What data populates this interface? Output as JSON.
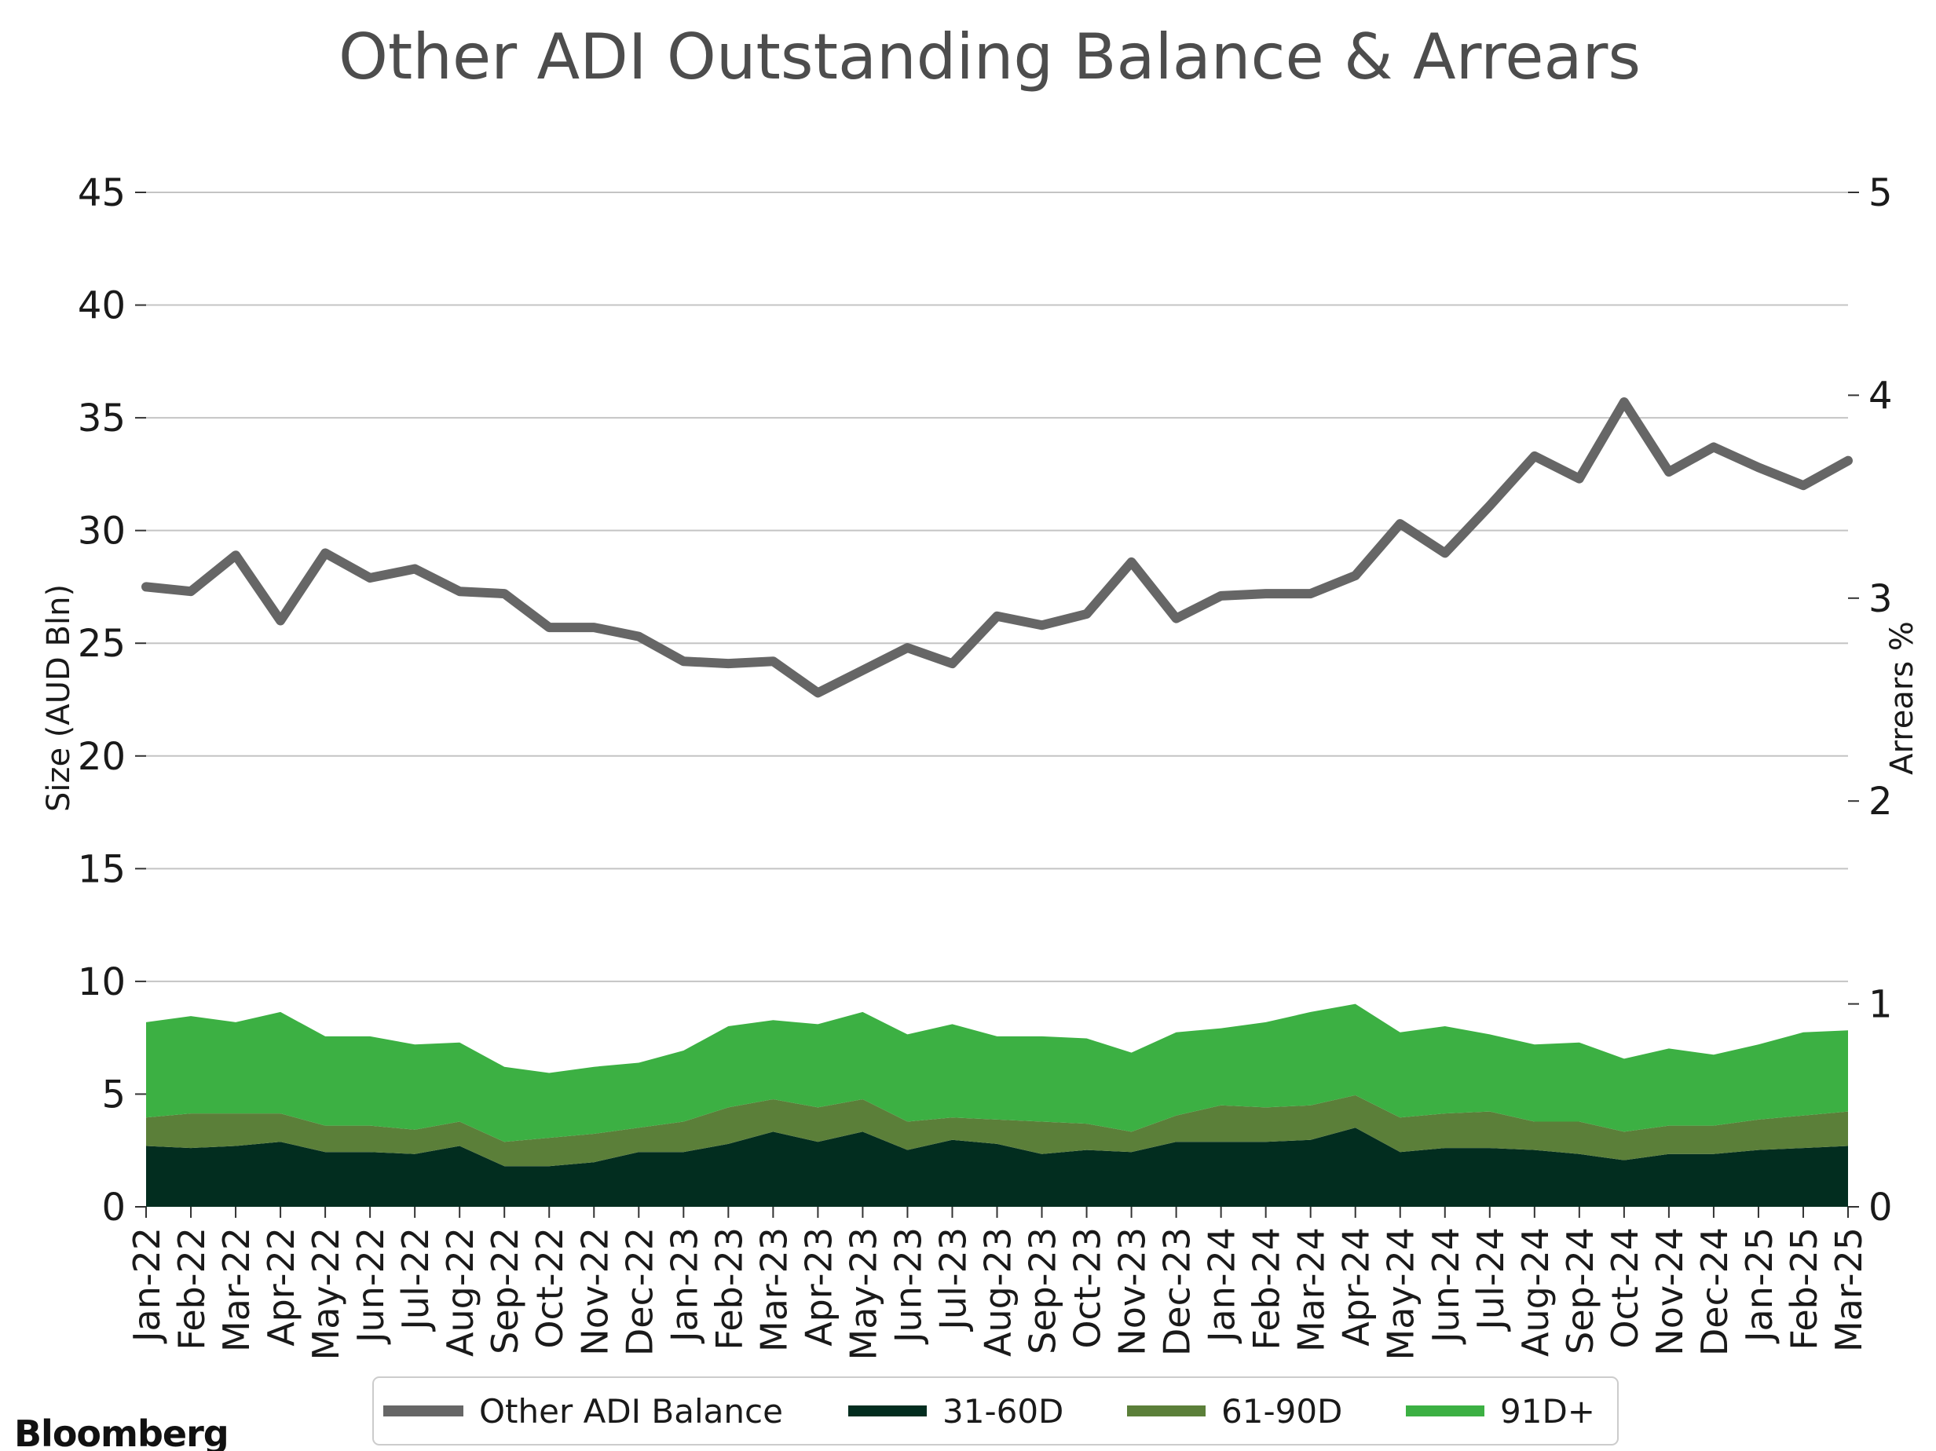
{
  "chart_data": {
    "type": "area",
    "title": "Other ADI Outstanding Balance & Arrears",
    "ylabel_left": "Size (AUD Bln)",
    "ylabel_right": "Arrears %",
    "ylim_left": [
      0,
      45
    ],
    "ylim_right": [
      0,
      5
    ],
    "yticks_left": [
      "0",
      "5",
      "10",
      "15",
      "20",
      "25",
      "30",
      "35",
      "40",
      "45"
    ],
    "yticks_right": [
      "0",
      "1",
      "2",
      "3",
      "4",
      "5"
    ],
    "grid": true,
    "legend_position": "bottom",
    "categories": [
      "Jan-22",
      "Feb-22",
      "Mar-22",
      "Apr-22",
      "May-22",
      "Jun-22",
      "Jul-22",
      "Aug-22",
      "Sep-22",
      "Oct-22",
      "Nov-22",
      "Dec-22",
      "Jan-23",
      "Feb-23",
      "Mar-23",
      "Apr-23",
      "May-23",
      "Jun-23",
      "Jul-23",
      "Aug-23",
      "Sep-23",
      "Oct-23",
      "Nov-23",
      "Dec-23",
      "Jan-24",
      "Feb-24",
      "Mar-24",
      "Apr-24",
      "May-24",
      "Jun-24",
      "Jul-24",
      "Aug-24",
      "Sep-24",
      "Oct-24",
      "Nov-24",
      "Dec-24",
      "Jan-25",
      "Feb-25",
      "Mar-25"
    ],
    "line_series": {
      "name": "Other ADI Balance",
      "axis": "left",
      "color": "#666666",
      "values": [
        27.5,
        27.3,
        28.9,
        26.0,
        29.0,
        27.9,
        28.3,
        27.3,
        27.2,
        25.7,
        25.7,
        25.3,
        24.2,
        24.1,
        24.2,
        22.8,
        23.8,
        24.8,
        24.1,
        26.2,
        25.8,
        26.3,
        28.6,
        26.1,
        27.1,
        27.2,
        27.2,
        28.0,
        30.3,
        29.0,
        31.1,
        33.3,
        32.3,
        35.7,
        32.6,
        33.7,
        32.8,
        32.0,
        33.1
      ]
    },
    "area_series": [
      {
        "name": "31-60D",
        "axis": "right",
        "color": "#022d1f",
        "values": [
          0.3,
          0.29,
          0.3,
          0.32,
          0.27,
          0.27,
          0.26,
          0.3,
          0.2,
          0.2,
          0.22,
          0.27,
          0.27,
          0.31,
          0.37,
          0.32,
          0.37,
          0.28,
          0.33,
          0.31,
          0.26,
          0.28,
          0.27,
          0.32,
          0.32,
          0.32,
          0.33,
          0.39,
          0.27,
          0.29,
          0.29,
          0.28,
          0.26,
          0.23,
          0.26,
          0.26,
          0.28,
          0.29,
          0.3
        ]
      },
      {
        "name": "61-90D",
        "axis": "right",
        "color": "#5b7f39",
        "values": [
          0.14,
          0.17,
          0.16,
          0.14,
          0.13,
          0.13,
          0.12,
          0.12,
          0.12,
          0.14,
          0.14,
          0.12,
          0.15,
          0.18,
          0.16,
          0.17,
          0.16,
          0.14,
          0.11,
          0.12,
          0.16,
          0.13,
          0.1,
          0.13,
          0.18,
          0.17,
          0.17,
          0.16,
          0.17,
          0.17,
          0.18,
          0.14,
          0.16,
          0.14,
          0.14,
          0.14,
          0.15,
          0.16,
          0.17
        ]
      },
      {
        "name": "91D+",
        "axis": "right",
        "color": "#3cb043",
        "values": [
          0.47,
          0.48,
          0.45,
          0.5,
          0.44,
          0.44,
          0.42,
          0.39,
          0.37,
          0.32,
          0.33,
          0.32,
          0.35,
          0.4,
          0.39,
          0.41,
          0.43,
          0.43,
          0.46,
          0.41,
          0.42,
          0.42,
          0.39,
          0.41,
          0.38,
          0.42,
          0.46,
          0.45,
          0.42,
          0.43,
          0.38,
          0.38,
          0.39,
          0.36,
          0.38,
          0.35,
          0.37,
          0.41,
          0.4
        ]
      }
    ]
  },
  "legend": [
    "Other ADI Balance",
    "31-60D",
    "61-90D",
    "91D+"
  ],
  "brand": {
    "text": "Bloomberg"
  }
}
